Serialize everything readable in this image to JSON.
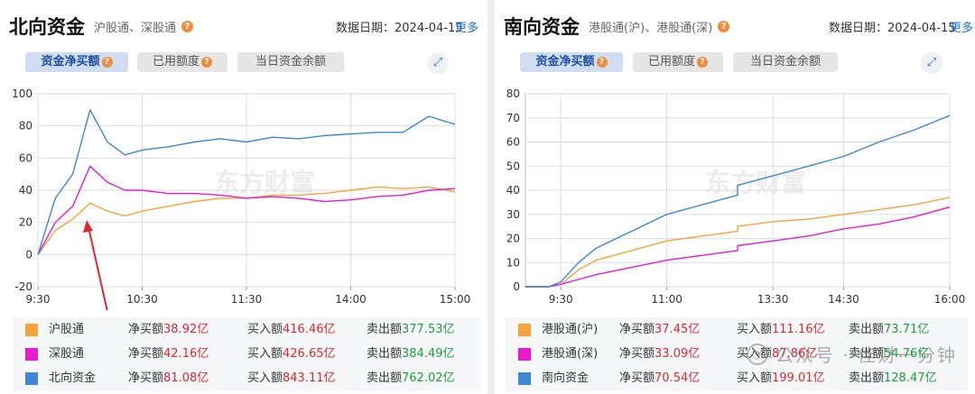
{
  "north": {
    "title": "北向资金",
    "subtitle": "沪股通、深股通",
    "date_label": "数据日期：2024-04-15",
    "more": "更多",
    "tabs": [
      "资金净买额",
      "已用额度",
      "当日资金余额"
    ],
    "legend": [
      {
        "name": "沪股通",
        "color": "#f5a43a",
        "net_label": "净买额",
        "net": "38.92亿",
        "buy_label": "买入额",
        "buy": "416.46亿",
        "sell_label": "卖出额",
        "sell": "377.53亿"
      },
      {
        "name": "深股通",
        "color": "#e81ccf",
        "net_label": "净买额",
        "net": "42.16亿",
        "buy_label": "买入额",
        "buy": "426.65亿",
        "sell_label": "卖出额",
        "sell": "384.49亿"
      },
      {
        "name": "北向资金",
        "color": "#3e86d6",
        "net_label": "净买额",
        "net": "81.08亿",
        "buy_label": "买入额",
        "buy": "843.11亿",
        "sell_label": "卖出额",
        "sell": "762.02亿"
      }
    ],
    "watermark": "东方财富"
  },
  "south": {
    "title": "南向资金",
    "subtitle": "港股通(沪)、港股通(深)",
    "date_label": "数据日期：2024-04-15",
    "more": "更多",
    "tabs": [
      "资金净买额",
      "已用额度",
      "当日资金余额"
    ],
    "legend": [
      {
        "name": "港股通(沪)",
        "color": "#f5a43a",
        "net_label": "净买额",
        "net": "37.45亿",
        "buy_label": "买入额",
        "buy": "111.16亿",
        "sell_label": "卖出额",
        "sell": "73.71亿"
      },
      {
        "name": "港股通(深)",
        "color": "#e81ccf",
        "net_label": "净买额",
        "net": "33.09亿",
        "buy_label": "买入额",
        "buy": "87.86亿",
        "sell_label": "卖出额",
        "sell": "54.76亿"
      },
      {
        "name": "南向资金",
        "color": "#3e86d6",
        "net_label": "净买额",
        "net": "70.54亿",
        "buy_label": "买入额",
        "buy": "199.01亿",
        "sell_label": "卖出额",
        "sell": "128.47亿"
      }
    ],
    "watermark": "东方财富"
  },
  "corner_watermark": "公众号 · 佳财一分钟",
  "chart_data": [
    {
      "type": "line",
      "title": "北向资金",
      "x_ticks": [
        "9:30",
        "10:30",
        "11:30",
        "14:00",
        "15:00"
      ],
      "x": [
        "9:30",
        "9:40",
        "9:50",
        "10:00",
        "10:10",
        "10:20",
        "10:30",
        "10:45",
        "11:00",
        "11:15",
        "11:30",
        "13:15",
        "13:30",
        "13:45",
        "14:00",
        "14:15",
        "14:30",
        "14:45",
        "15:00"
      ],
      "ylim": [
        -20,
        100
      ],
      "y_ticks": [
        -20,
        0,
        20,
        40,
        60,
        80,
        100
      ],
      "grid": true,
      "series": [
        {
          "name": "沪股通",
          "color": "#f5a43a",
          "values": [
            0,
            15,
            22,
            32,
            27,
            24,
            27,
            30,
            33,
            35,
            35,
            37,
            37,
            38,
            40,
            42,
            41,
            42,
            39
          ]
        },
        {
          "name": "深股通",
          "color": "#e81ccf",
          "values": [
            0,
            20,
            30,
            55,
            45,
            40,
            40,
            38,
            38,
            37,
            35,
            36,
            35,
            33,
            34,
            36,
            37,
            40,
            41
          ]
        },
        {
          "name": "北向资金",
          "color": "#3e86d6",
          "values": [
            0,
            35,
            50,
            90,
            70,
            62,
            65,
            67,
            70,
            72,
            70,
            73,
            72,
            74,
            75,
            76,
            76,
            86,
            81
          ]
        }
      ]
    },
    {
      "type": "line",
      "title": "南向资金",
      "x_ticks": [
        "9:30",
        "11:00",
        "13:30",
        "14:30",
        "16:00"
      ],
      "x": [
        "9:00",
        "9:10",
        "9:20",
        "9:30",
        "9:45",
        "10:00",
        "10:30",
        "11:00",
        "11:30",
        "12:00",
        "13:00",
        "13:30",
        "14:00",
        "14:30",
        "15:00",
        "15:30",
        "16:00"
      ],
      "ylim": [
        0,
        80
      ],
      "y_ticks": [
        0,
        10,
        20,
        30,
        40,
        50,
        60,
        70,
        80
      ],
      "grid": true,
      "series": [
        {
          "name": "港股通(沪)",
          "color": "#f5a43a",
          "values": [
            0,
            0,
            0,
            1,
            7,
            11,
            15,
            19,
            21,
            23,
            25,
            27,
            28,
            30,
            32,
            34,
            37
          ]
        },
        {
          "name": "港股通(深)",
          "color": "#e81ccf",
          "values": [
            0,
            0,
            0,
            1,
            3,
            5,
            8,
            11,
            13,
            15,
            17,
            19,
            21,
            24,
            26,
            29,
            33
          ]
        },
        {
          "name": "南向资金",
          "color": "#3e86d6",
          "values": [
            0,
            0,
            0,
            2,
            10,
            16,
            23,
            30,
            34,
            38,
            42,
            46,
            50,
            54,
            60,
            65,
            71
          ]
        }
      ]
    }
  ]
}
